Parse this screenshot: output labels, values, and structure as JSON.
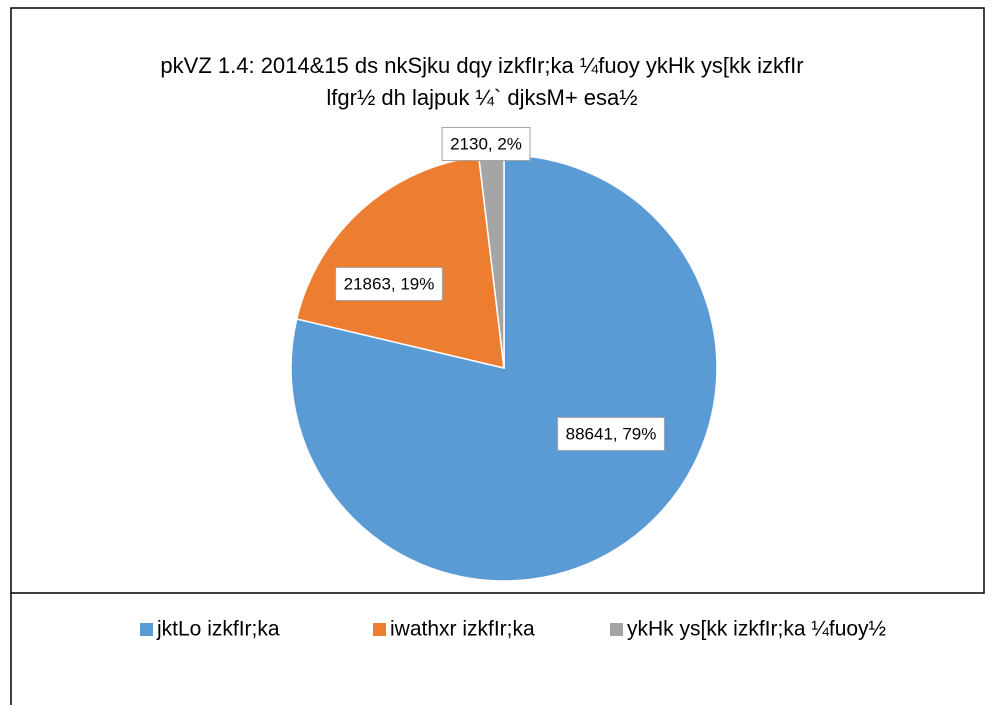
{
  "chart_data": {
    "type": "pie",
    "title": [
      "pkVZ 1.4: 2014&15 ds nkSjku dqy izkfIr;ka ¼fuoy ykHk ys[kk izkfIr",
      "lfgr½ dh lajpuk ¼` djksM+ esa½"
    ],
    "categories": [
      "jktLo izkfIr;ka",
      "iwathxr izkfIr;ka",
      "ykHk ys[kk izkfIr;ka ¼fuoy½"
    ],
    "values": [
      88641,
      21863,
      2130
    ],
    "value_labels": [
      "88641, 79%",
      "21863, 19%",
      "2130, 2%"
    ],
    "colors": [
      "#5b9bd5",
      "#ed7d31",
      "#a5a5a5"
    ],
    "legend": "bottom"
  }
}
